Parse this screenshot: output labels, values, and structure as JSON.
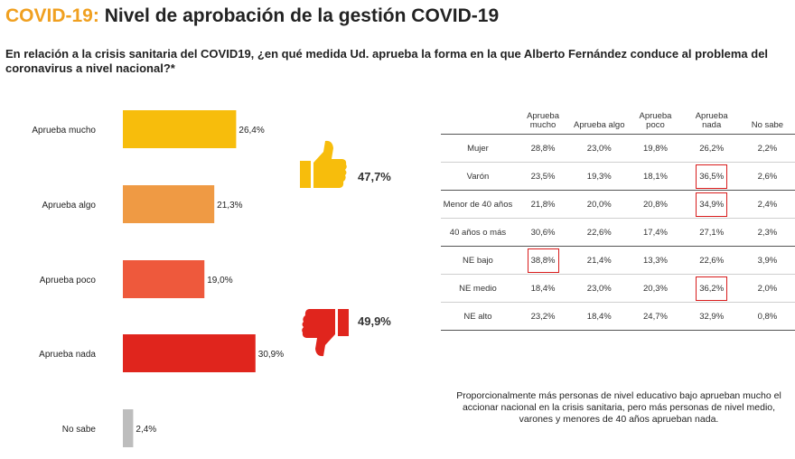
{
  "header": {
    "brand": "COVID-19:",
    "title": "Nivel de aprobación de la gestión COVID-19",
    "question": "En relación a la crisis sanitaria del COVID19, ¿en qué medida Ud. aprueba la forma en la que Alberto Fernández conduce al problema del coronavirus a nivel nacional?*"
  },
  "chart_data": {
    "type": "bar",
    "orientation": "horizontal",
    "categories": [
      "Aprueba mucho",
      "Aprueba algo",
      "Aprueba poco",
      "Aprueba nada",
      "No sabe"
    ],
    "values": [
      26.4,
      21.3,
      19.0,
      30.9,
      2.4
    ],
    "value_labels": [
      "26,4%",
      "21,3%",
      "19,0%",
      "30,9%",
      "2,4%"
    ],
    "colors": [
      "#f7bd0c",
      "#ef9a44",
      "#ee593c",
      "#e0251d",
      "#bdbdbd"
    ],
    "xlim": [
      0,
      35
    ],
    "grid": false,
    "annotations": [
      {
        "icon": "thumbs-up-icon",
        "label": "47,7%",
        "color": "#f7bd0c"
      },
      {
        "icon": "thumbs-down-icon",
        "label": "49,9%",
        "color": "#e0251d"
      }
    ]
  },
  "table": {
    "columns": [
      "Aprueba mucho",
      "Aprueba algo",
      "Aprueba poco",
      "Aprueba nada",
      "No sabe"
    ],
    "rows": [
      {
        "label": "Mujer",
        "cells": [
          "28,8%",
          "23,0%",
          "19,8%",
          "26,2%",
          "2,2%"
        ],
        "highlight": []
      },
      {
        "label": "Varón",
        "cells": [
          "23,5%",
          "19,3%",
          "18,1%",
          "36,5%",
          "2,6%"
        ],
        "highlight": [
          3
        ]
      },
      {
        "label": "Menor de 40 años",
        "cells": [
          "21,8%",
          "20,0%",
          "20,8%",
          "34,9%",
          "2,4%"
        ],
        "highlight": [
          3
        ]
      },
      {
        "label": "40 años o más",
        "cells": [
          "30,6%",
          "22,6%",
          "17,4%",
          "27,1%",
          "2,3%"
        ],
        "highlight": []
      },
      {
        "label": "NE bajo",
        "cells": [
          "38,8%",
          "21,4%",
          "13,3%",
          "22,6%",
          "3,9%"
        ],
        "highlight": [
          0
        ]
      },
      {
        "label": "NE medio",
        "cells": [
          "18,4%",
          "23,0%",
          "20,3%",
          "36,2%",
          "2,0%"
        ],
        "highlight": [
          3
        ]
      },
      {
        "label": "NE alto",
        "cells": [
          "23,2%",
          "18,4%",
          "24,7%",
          "32,9%",
          "0,8%"
        ],
        "highlight": []
      }
    ]
  },
  "note": "Proporcionalmente más personas de nivel educativo bajo aprueban mucho el accionar nacional en la crisis sanitaria, pero más personas de nivel medio, varones y menores de 40 años aprueban nada."
}
